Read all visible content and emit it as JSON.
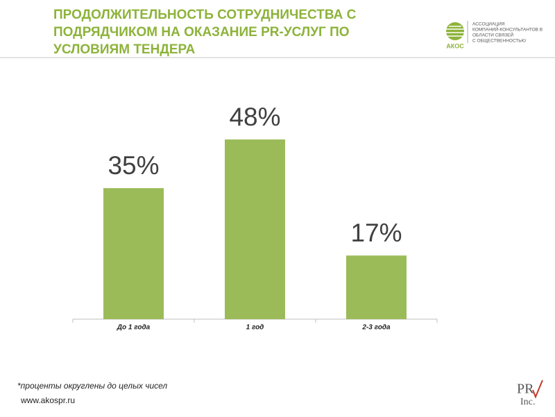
{
  "header": {
    "title": [
      "ПРОДОЛЖИТЕЛЬНОСТЬ СОТРУДНИЧЕСТВА С",
      "ПОДРЯДЧИКОМ НА ОКАЗАНИЕ PR-УСЛУГ ПО",
      "УСЛОВИЯМ ТЕНДЕРА"
    ],
    "logo": {
      "name": "АКОС",
      "lines": [
        "АССОЦИАЦИЯ",
        "КОМПАНИЙ-КОНСУЛЬТАНТОВ В",
        "ОБЛАСТИ СВЯЗЕЙ",
        "С ОБЩЕСТВЕННОСТЬЮ"
      ]
    }
  },
  "chart_data": {
    "type": "bar",
    "categories": [
      "До 1 года",
      "1 год",
      "2-3 года"
    ],
    "values": [
      35,
      48,
      17
    ],
    "value_labels": [
      "35%",
      "48%",
      "17%"
    ],
    "color": "#9bbb59"
  },
  "footer": {
    "note": "*проценты округлены до целых чисел",
    "url": "www.akospr.ru",
    "brand": [
      "PR",
      "Inc."
    ]
  }
}
